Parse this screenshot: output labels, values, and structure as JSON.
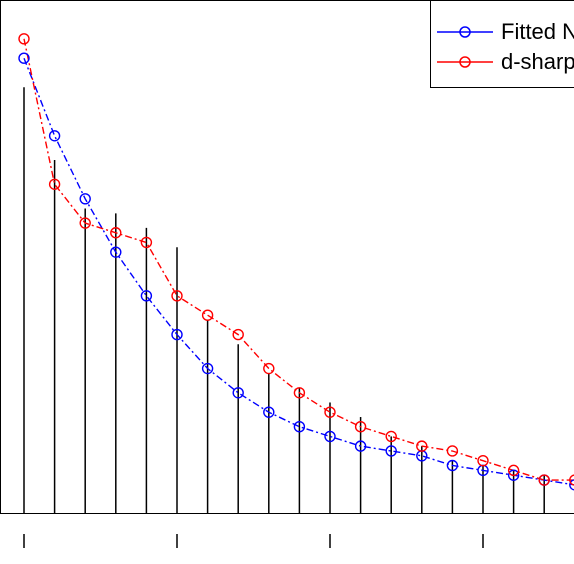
{
  "chart_data": {
    "type": "line",
    "x": [
      1,
      2,
      3,
      4,
      5,
      6,
      7,
      8,
      9,
      10,
      11,
      12,
      13,
      14,
      15,
      16,
      17,
      18,
      19,
      20
    ],
    "observed": [
      8.8,
      7.3,
      6.3,
      6.2,
      5.9,
      5.5,
      4.0,
      3.5,
      2.9,
      2.6,
      2.3,
      2.0,
      1.6,
      1.4,
      1.1,
      1.0,
      0.9,
      0.8,
      0.7,
      0.7
    ],
    "series": [
      {
        "name": "Fitted N",
        "color": "#0000ff",
        "values": [
          9.4,
          7.8,
          6.5,
          5.4,
          4.5,
          3.7,
          3.0,
          2.5,
          2.1,
          1.8,
          1.6,
          1.4,
          1.3,
          1.2,
          1.0,
          0.9,
          0.8,
          0.7,
          0.6,
          0.5
        ]
      },
      {
        "name": "d-sharp",
        "color": "#ff0000",
        "values": [
          9.8,
          6.8,
          6.0,
          5.8,
          5.6,
          4.5,
          4.1,
          3.7,
          3.0,
          2.5,
          2.1,
          1.8,
          1.6,
          1.4,
          1.3,
          1.1,
          0.9,
          0.7,
          0.7,
          0.4
        ]
      }
    ],
    "ylim": [
      0,
      10.6
    ],
    "xlim": [
      1,
      19.7
    ],
    "x_ticks": [
      1,
      6,
      11,
      16
    ],
    "grid": false,
    "legend_position": "top-right"
  }
}
